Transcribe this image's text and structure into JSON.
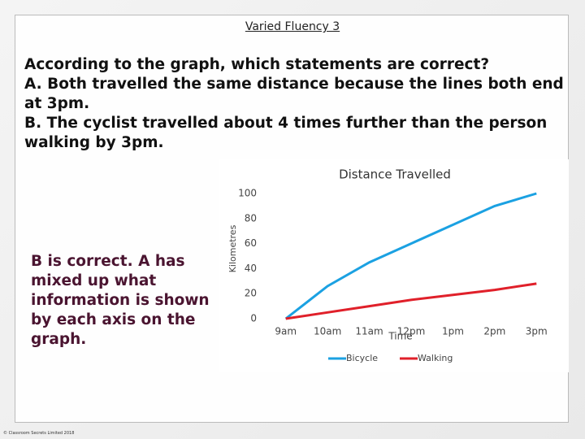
{
  "slide_title": "Varied Fluency 3",
  "question": "According to the graph, which statements are correct?",
  "statements": [
    "A. Both travelled the same distance because the lines both end at 3pm.",
    "B. The cyclist travelled about 4 times further than the person walking by 3pm."
  ],
  "answer": "B is correct. A has mixed up what information is shown by each axis on the graph.",
  "footer": "© Classroom Secrets Limited 2018",
  "chart_data": {
    "type": "line",
    "title": "Distance Travelled",
    "x_label": "Time",
    "y_label": "Kilometres",
    "categories": [
      "9am",
      "10am",
      "11am",
      "12pm",
      "1pm",
      "2pm",
      "3pm"
    ],
    "series": [
      {
        "name": "Bicycle",
        "color": "#1ba1e2",
        "values": [
          0,
          26,
          45,
          60,
          75,
          90,
          100
        ]
      },
      {
        "name": "Walking",
        "color": "#e0202a",
        "values": [
          0,
          5,
          10,
          15,
          19,
          23,
          28
        ]
      }
    ],
    "ylim": [
      0,
      100
    ],
    "yticks": [
      0,
      20,
      40,
      60,
      80,
      100
    ],
    "grid": false,
    "legend": "bottom"
  }
}
